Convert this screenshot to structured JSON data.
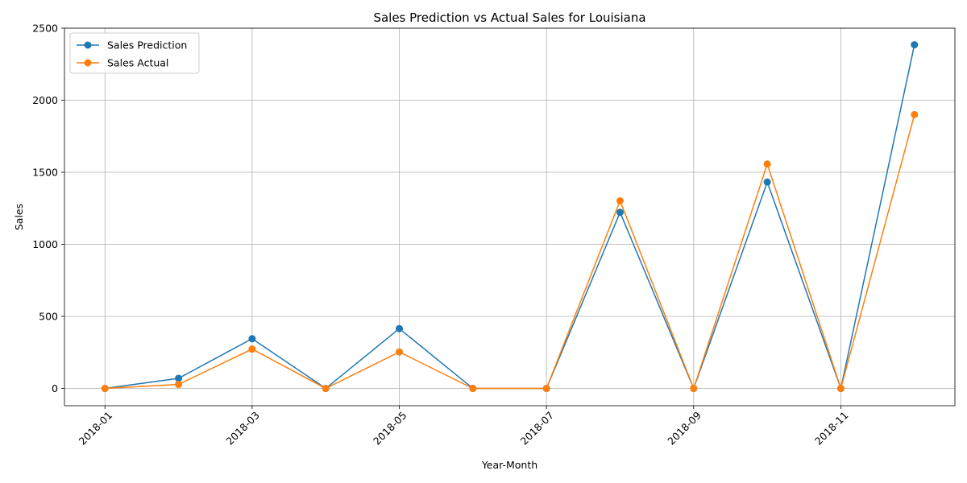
{
  "chart_data": {
    "type": "line",
    "title": "Sales Prediction vs Actual Sales for Louisiana",
    "xlabel": "Year-Month",
    "ylabel": "Sales",
    "x": [
      "2018-01",
      "2018-02",
      "2018-03",
      "2018-04",
      "2018-05",
      "2018-06",
      "2018-07",
      "2018-08",
      "2018-09",
      "2018-10",
      "2018-11",
      "2018-12"
    ],
    "x_tick_labels": [
      "2018-01",
      "2018-03",
      "2018-05",
      "2018-07",
      "2018-09",
      "2018-11"
    ],
    "y_ticks": [
      0,
      500,
      1000,
      1500,
      2000,
      2500
    ],
    "ylim": [
      -120,
      2500
    ],
    "grid": true,
    "legend_position": "top-left",
    "series": [
      {
        "name": "Sales Prediction",
        "color": "#1f77b4",
        "marker": "circle",
        "values": [
          0,
          70,
          345,
          0,
          415,
          0,
          0,
          1222,
          0,
          1432,
          0,
          2385
        ]
      },
      {
        "name": "Sales Actual",
        "color": "#ff7f0e",
        "marker": "circle",
        "values": [
          0,
          28,
          273,
          0,
          253,
          0,
          0,
          1302,
          0,
          1557,
          0,
          1900
        ]
      }
    ]
  }
}
